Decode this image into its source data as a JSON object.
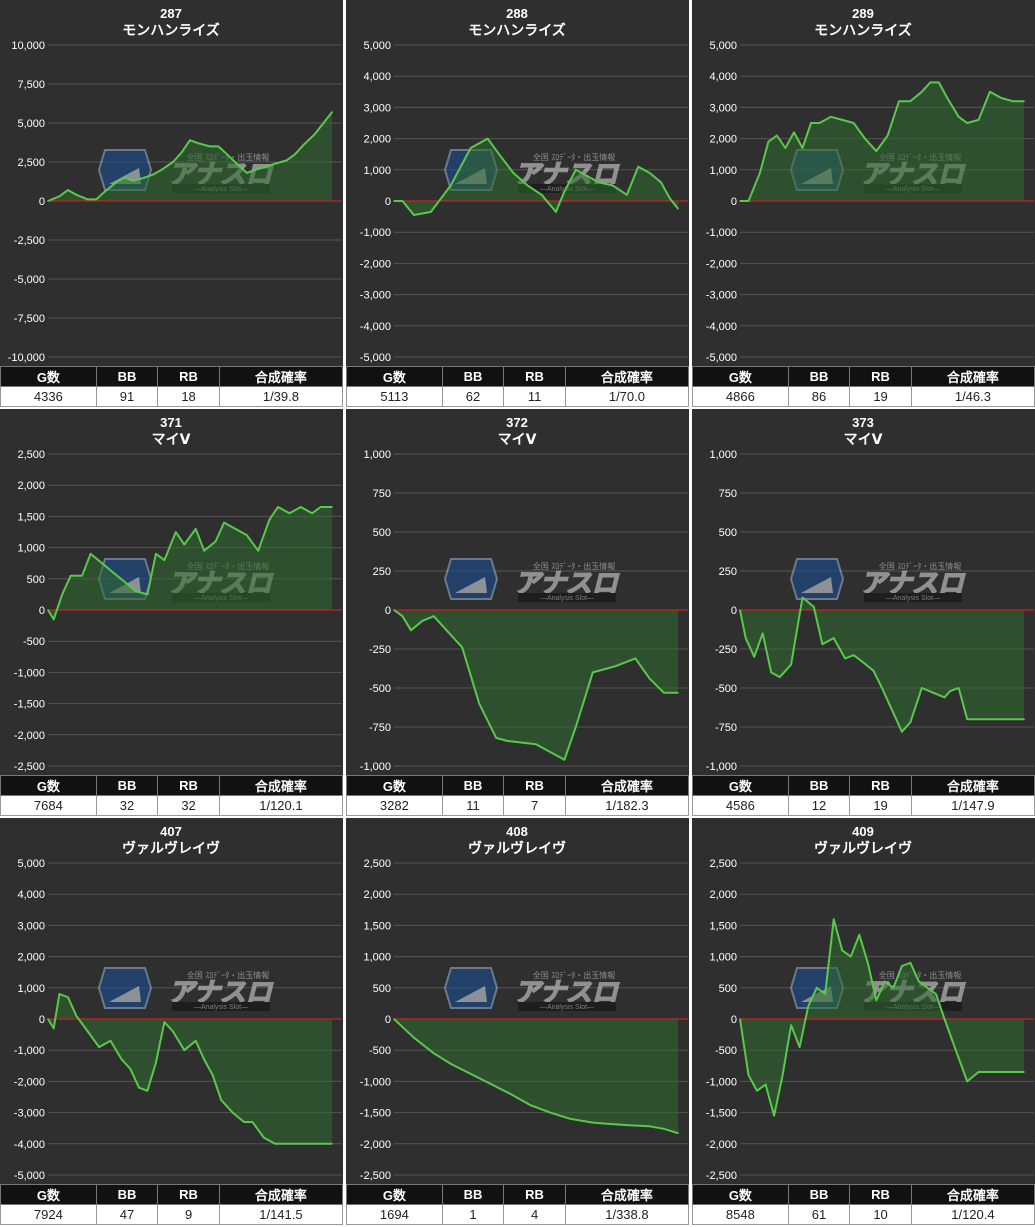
{
  "headers": {
    "games": "G数",
    "bb": "BB",
    "rb": "RB",
    "rate": "合成確率"
  },
  "watermark": {
    "top_text": "全国 ｽﾛﾃﾞｰﾀ・出玉情報",
    "logo_text": "アナスロ",
    "sub_text": "—Analysis Slot—"
  },
  "colors": {
    "background": "#2f2f2f",
    "grid": "#555555",
    "zero_line": "#cc1f1f",
    "line": "#58c94a",
    "fill": "#2f6b2f"
  },
  "machines": [
    {
      "number": "287",
      "name": "モンハンライズ",
      "stats": {
        "games": "4336",
        "bb": "91",
        "rb": "18",
        "rate": "1/39.8"
      }
    },
    {
      "number": "288",
      "name": "モンハンライズ",
      "stats": {
        "games": "5113",
        "bb": "62",
        "rb": "11",
        "rate": "1/70.0"
      }
    },
    {
      "number": "289",
      "name": "モンハンライズ",
      "stats": {
        "games": "4866",
        "bb": "86",
        "rb": "19",
        "rate": "1/46.3"
      }
    },
    {
      "number": "371",
      "name": "マイV",
      "stats": {
        "games": "7684",
        "bb": "32",
        "rb": "32",
        "rate": "1/120.1"
      }
    },
    {
      "number": "372",
      "name": "マイV",
      "stats": {
        "games": "3282",
        "bb": "11",
        "rb": "7",
        "rate": "1/182.3"
      }
    },
    {
      "number": "373",
      "name": "マイV",
      "stats": {
        "games": "4586",
        "bb": "12",
        "rb": "19",
        "rate": "1/147.9"
      }
    },
    {
      "number": "407",
      "name": "ヴァルヴレイヴ",
      "stats": {
        "games": "7924",
        "bb": "47",
        "rb": "9",
        "rate": "1/141.5"
      }
    },
    {
      "number": "408",
      "name": "ヴァルヴレイヴ",
      "stats": {
        "games": "1694",
        "bb": "1",
        "rb": "4",
        "rate": "1/338.8"
      }
    },
    {
      "number": "409",
      "name": "ヴァルヴレイヴ",
      "stats": {
        "games": "8548",
        "bb": "61",
        "rb": "10",
        "rate": "1/120.4"
      }
    }
  ],
  "chart_data": [
    {
      "type": "area",
      "title": "287",
      "subtitle": "モンハンライズ",
      "ylim": [
        -10000,
        10000
      ],
      "grid": true,
      "legend": "none",
      "yticks": [
        10000,
        7500,
        5000,
        2500,
        0,
        -2500,
        -5000,
        -7500,
        -10000
      ],
      "ytick_labels": [
        "10,000",
        "7,500",
        "5,000",
        "2,500",
        "0",
        "-2,500",
        "-5,000",
        "-7,500",
        "-10,000"
      ],
      "x": [
        0,
        0.04,
        0.07,
        0.1,
        0.14,
        0.17,
        0.2,
        0.24,
        0.27,
        0.3,
        0.34,
        0.37,
        0.4,
        0.44,
        0.47,
        0.5,
        0.53,
        0.57,
        0.6,
        0.63,
        0.67,
        0.7,
        0.73,
        0.77,
        0.8,
        0.84,
        0.87,
        0.9,
        0.94,
        0.97,
        1
      ],
      "y": [
        0,
        300,
        700,
        400,
        100,
        100,
        600,
        1200,
        1500,
        1300,
        1500,
        1700,
        2000,
        2500,
        3100,
        3900,
        3700,
        3500,
        3500,
        3000,
        2300,
        1800,
        2000,
        2200,
        2400,
        2600,
        3000,
        3600,
        4300,
        5000,
        5700
      ]
    },
    {
      "type": "area",
      "title": "288",
      "subtitle": "モンハンライズ",
      "ylim": [
        -5000,
        5000
      ],
      "grid": true,
      "legend": "none",
      "yticks": [
        5000,
        4000,
        3000,
        2000,
        1000,
        0,
        -1000,
        -2000,
        -3000,
        -4000,
        -5000
      ],
      "ytick_labels": [
        "5,000",
        "4,000",
        "3,000",
        "2,000",
        "1,000",
        "0",
        "-1,000",
        "-2,000",
        "-3,000",
        "-4,000",
        "-5,000"
      ],
      "x": [
        0,
        0.03,
        0.07,
        0.13,
        0.2,
        0.27,
        0.33,
        0.37,
        0.42,
        0.47,
        0.52,
        0.57,
        0.6,
        0.64,
        0.68,
        0.72,
        0.77,
        0.82,
        0.86,
        0.9,
        0.94,
        0.97,
        1
      ],
      "y": [
        0,
        0,
        -450,
        -350,
        500,
        1700,
        2000,
        1500,
        900,
        500,
        200,
        -350,
        300,
        1000,
        800,
        600,
        500,
        200,
        1100,
        900,
        600,
        100,
        -250
      ]
    },
    {
      "type": "area",
      "title": "289",
      "subtitle": "モンハンライズ",
      "ylim": [
        -5000,
        5000
      ],
      "grid": true,
      "legend": "none",
      "yticks": [
        5000,
        4000,
        3000,
        2000,
        1000,
        0,
        -1000,
        -2000,
        -3000,
        -4000,
        -5000
      ],
      "ytick_labels": [
        "5,000",
        "4,000",
        "3,000",
        "2,000",
        "1,000",
        "0",
        "-1,000",
        "-2,000",
        "-3,000",
        "-4,000",
        "-5,000"
      ],
      "x": [
        0,
        0.03,
        0.07,
        0.1,
        0.13,
        0.16,
        0.19,
        0.22,
        0.25,
        0.28,
        0.32,
        0.36,
        0.4,
        0.44,
        0.48,
        0.52,
        0.56,
        0.6,
        0.64,
        0.67,
        0.7,
        0.73,
        0.77,
        0.8,
        0.84,
        0.88,
        0.92,
        0.96,
        1
      ],
      "y": [
        0,
        0,
        900,
        1900,
        2100,
        1700,
        2200,
        1700,
        2500,
        2500,
        2700,
        2600,
        2500,
        2000,
        1600,
        2100,
        3200,
        3200,
        3500,
        3800,
        3800,
        3300,
        2700,
        2500,
        2600,
        3500,
        3300,
        3200,
        3200
      ]
    },
    {
      "type": "area",
      "title": "371",
      "subtitle": "マイV",
      "ylim": [
        -2500,
        2500
      ],
      "grid": true,
      "legend": "none",
      "yticks": [
        2500,
        2000,
        1500,
        1000,
        500,
        0,
        -500,
        -1000,
        -1500,
        -2000,
        -2500
      ],
      "ytick_labels": [
        "2,500",
        "2,000",
        "1,500",
        "1,000",
        "500",
        "0",
        "-500",
        "-1,000",
        "-1,500",
        "-2,000",
        "-2,500"
      ],
      "x": [
        0,
        0.02,
        0.05,
        0.08,
        0.12,
        0.15,
        0.19,
        0.23,
        0.27,
        0.31,
        0.35,
        0.38,
        0.41,
        0.45,
        0.48,
        0.52,
        0.55,
        0.59,
        0.62,
        0.66,
        0.7,
        0.74,
        0.78,
        0.81,
        0.85,
        0.89,
        0.93,
        0.96,
        1
      ],
      "y": [
        0,
        -150,
        250,
        550,
        550,
        900,
        750,
        600,
        450,
        300,
        250,
        900,
        800,
        1250,
        1050,
        1300,
        950,
        1100,
        1400,
        1300,
        1200,
        950,
        1450,
        1650,
        1550,
        1650,
        1550,
        1650,
        1650
      ]
    },
    {
      "type": "area",
      "title": "372",
      "subtitle": "マイV",
      "ylim": [
        -1000,
        1000
      ],
      "grid": true,
      "legend": "none",
      "yticks": [
        1000,
        750,
        500,
        250,
        0,
        -250,
        -500,
        -750,
        -1000
      ],
      "ytick_labels": [
        "1,000",
        "750",
        "500",
        "250",
        "0",
        "-250",
        "-500",
        "-750",
        "-1,000"
      ],
      "x": [
        0,
        0.03,
        0.06,
        0.1,
        0.14,
        0.18,
        0.24,
        0.3,
        0.36,
        0.4,
        0.5,
        0.6,
        0.64,
        0.7,
        0.78,
        0.85,
        0.9,
        0.95,
        1
      ],
      "y": [
        0,
        -40,
        -130,
        -70,
        -40,
        -120,
        -240,
        -600,
        -820,
        -840,
        -860,
        -960,
        -750,
        -400,
        -360,
        -310,
        -440,
        -530,
        -530
      ]
    },
    {
      "type": "area",
      "title": "373",
      "subtitle": "マイV",
      "ylim": [
        -1000,
        1000
      ],
      "grid": true,
      "legend": "none",
      "yticks": [
        1000,
        750,
        500,
        250,
        0,
        -250,
        -500,
        -750,
        -1000
      ],
      "ytick_labels": [
        "1,000",
        "750",
        "500",
        "250",
        "0",
        "-250",
        "-500",
        "-750",
        "-1,000"
      ],
      "x": [
        0,
        0.02,
        0.05,
        0.08,
        0.11,
        0.14,
        0.18,
        0.22,
        0.26,
        0.29,
        0.33,
        0.37,
        0.4,
        0.43,
        0.47,
        0.5,
        0.53,
        0.57,
        0.6,
        0.64,
        0.68,
        0.72,
        0.74,
        0.77,
        0.8,
        0.85,
        0.9,
        0.94,
        0.97,
        1
      ],
      "y": [
        0,
        -180,
        -300,
        -150,
        -400,
        -430,
        -350,
        80,
        20,
        -220,
        -180,
        -310,
        -290,
        -330,
        -390,
        -500,
        -620,
        -780,
        -720,
        -500,
        -530,
        -560,
        -520,
        -500,
        -700,
        -700,
        -700,
        -700,
        -700,
        -700
      ]
    },
    {
      "type": "area",
      "title": "407",
      "subtitle": "ヴァルヴレイヴ",
      "ylim": [
        -5000,
        5000
      ],
      "grid": true,
      "legend": "none",
      "yticks": [
        5000,
        4000,
        3000,
        2000,
        1000,
        0,
        -1000,
        -2000,
        -3000,
        -4000,
        -5000
      ],
      "ytick_labels": [
        "5,000",
        "4,000",
        "3,000",
        "2,000",
        "1,000",
        "0",
        "-1,000",
        "-2,000",
        "-3,000",
        "-4,000",
        "-5,000"
      ],
      "x": [
        0,
        0.02,
        0.04,
        0.07,
        0.1,
        0.14,
        0.18,
        0.22,
        0.26,
        0.29,
        0.32,
        0.35,
        0.38,
        0.41,
        0.44,
        0.48,
        0.52,
        0.55,
        0.58,
        0.61,
        0.65,
        0.69,
        0.72,
        0.76,
        0.8,
        0.84,
        0.88,
        0.92,
        0.96,
        1
      ],
      "y": [
        0,
        -300,
        800,
        700,
        100,
        -400,
        -900,
        -700,
        -1300,
        -1600,
        -2200,
        -2300,
        -1400,
        -100,
        -400,
        -1000,
        -700,
        -1300,
        -1800,
        -2600,
        -3000,
        -3300,
        -3300,
        -3800,
        -4000,
        -4000,
        -4000,
        -4000,
        -4000,
        -4000
      ]
    },
    {
      "type": "area",
      "title": "408",
      "subtitle": "ヴァルヴレイヴ",
      "ylim": [
        -2500,
        2500
      ],
      "grid": true,
      "legend": "none",
      "yticks": [
        2500,
        2000,
        1500,
        1000,
        500,
        0,
        -500,
        -1000,
        -1500,
        -2000,
        -2500
      ],
      "ytick_labels": [
        "2,500",
        "2,000",
        "1,500",
        "1,000",
        "500",
        "0",
        "-500",
        "-1,000",
        "-1,500",
        "-2,000",
        "-2,500"
      ],
      "x": [
        0,
        0.07,
        0.14,
        0.2,
        0.27,
        0.34,
        0.41,
        0.48,
        0.55,
        0.62,
        0.7,
        0.75,
        0.82,
        0.9,
        0.95,
        1
      ],
      "y": [
        0,
        -300,
        -550,
        -720,
        -880,
        -1040,
        -1200,
        -1380,
        -1500,
        -1600,
        -1660,
        -1680,
        -1700,
        -1720,
        -1760,
        -1830
      ]
    },
    {
      "type": "area",
      "title": "409",
      "subtitle": "ヴァルヴレイヴ",
      "ylim": [
        -2500,
        2500
      ],
      "grid": true,
      "legend": "none",
      "yticks": [
        2500,
        2000,
        1500,
        1000,
        500,
        0,
        -500,
        -1000,
        -1500,
        -2000,
        -2500
      ],
      "ytick_labels": [
        "2,500",
        "2,000",
        "1,500",
        "1,000",
        "500",
        "0",
        "-500",
        "-1,000",
        "-1,500",
        "-2,000",
        "-2,500"
      ],
      "x": [
        0,
        0.03,
        0.06,
        0.09,
        0.12,
        0.15,
        0.18,
        0.21,
        0.24,
        0.27,
        0.3,
        0.33,
        0.36,
        0.39,
        0.42,
        0.45,
        0.48,
        0.51,
        0.54,
        0.57,
        0.6,
        0.63,
        0.66,
        0.69,
        0.72,
        0.76,
        0.8,
        0.84,
        0.88,
        0.92,
        0.96,
        1
      ],
      "y": [
        0,
        -900,
        -1150,
        -1050,
        -1550,
        -900,
        -100,
        -450,
        200,
        500,
        400,
        1600,
        1100,
        1000,
        1350,
        900,
        300,
        600,
        500,
        850,
        900,
        600,
        500,
        400,
        0,
        -500,
        -1000,
        -850,
        -850,
        -850,
        -850,
        -850
      ]
    }
  ]
}
